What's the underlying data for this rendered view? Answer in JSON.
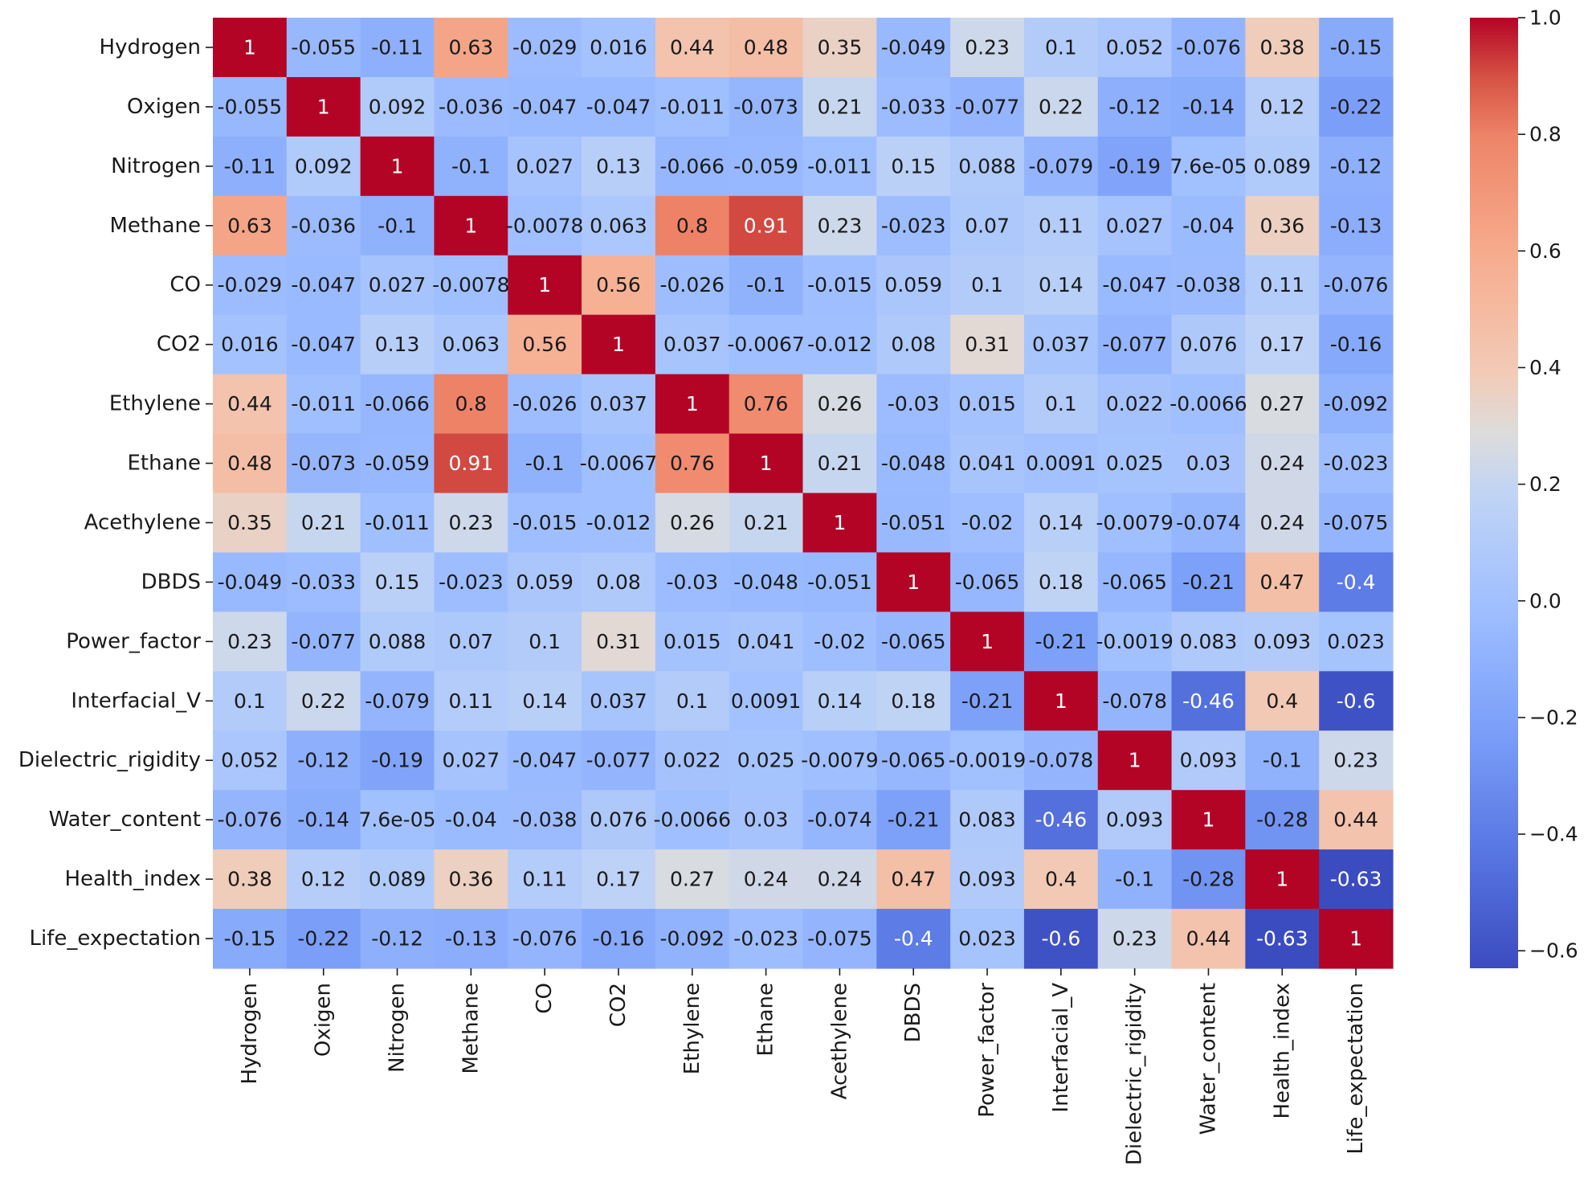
{
  "chart_data": {
    "type": "heatmap",
    "title": "",
    "xlabel": "",
    "ylabel": "",
    "colormap": "coolwarm",
    "vmin": -0.63,
    "vmax": 1.0,
    "labels": [
      "Hydrogen",
      "Oxigen",
      "Nitrogen",
      "Methane",
      "CO",
      "CO2",
      "Ethylene",
      "Ethane",
      "Acethylene",
      "DBDS",
      "Power_factor",
      "Interfacial_V",
      "Dielectric_rigidity",
      "Water_content",
      "Health_index",
      "Life_expectation"
    ],
    "values": [
      [
        1,
        -0.055,
        -0.11,
        0.63,
        -0.029,
        0.016,
        0.44,
        0.48,
        0.35,
        -0.049,
        0.23,
        0.1,
        0.052,
        -0.076,
        0.38,
        -0.15
      ],
      [
        -0.055,
        1,
        0.092,
        -0.036,
        -0.047,
        -0.047,
        -0.011,
        -0.073,
        0.21,
        -0.033,
        -0.077,
        0.22,
        -0.12,
        -0.14,
        0.12,
        -0.22
      ],
      [
        -0.11,
        0.092,
        1,
        -0.1,
        0.027,
        0.13,
        -0.066,
        -0.059,
        -0.011,
        0.15,
        0.088,
        -0.079,
        -0.19,
        7.6e-05,
        0.089,
        -0.12
      ],
      [
        0.63,
        -0.036,
        -0.1,
        1,
        -0.0078,
        0.063,
        0.8,
        0.91,
        0.23,
        -0.023,
        0.07,
        0.11,
        0.027,
        -0.04,
        0.36,
        -0.13
      ],
      [
        -0.029,
        -0.047,
        0.027,
        -0.0078,
        1,
        0.56,
        -0.026,
        -0.1,
        -0.015,
        0.059,
        0.1,
        0.14,
        -0.047,
        -0.038,
        0.11,
        -0.076
      ],
      [
        0.016,
        -0.047,
        0.13,
        0.063,
        0.56,
        1,
        0.037,
        -0.0067,
        -0.012,
        0.08,
        0.31,
        0.037,
        -0.077,
        0.076,
        0.17,
        -0.16
      ],
      [
        0.44,
        -0.011,
        -0.066,
        0.8,
        -0.026,
        0.037,
        1,
        0.76,
        0.26,
        -0.03,
        0.015,
        0.1,
        0.022,
        -0.0066,
        0.27,
        -0.092
      ],
      [
        0.48,
        -0.073,
        -0.059,
        0.91,
        -0.1,
        -0.0067,
        0.76,
        1,
        0.21,
        -0.048,
        0.041,
        0.0091,
        0.025,
        0.03,
        0.24,
        -0.023
      ],
      [
        0.35,
        0.21,
        -0.011,
        0.23,
        -0.015,
        -0.012,
        0.26,
        0.21,
        1,
        -0.051,
        -0.02,
        0.14,
        -0.0079,
        -0.074,
        0.24,
        -0.075
      ],
      [
        -0.049,
        -0.033,
        0.15,
        -0.023,
        0.059,
        0.08,
        -0.03,
        -0.048,
        -0.051,
        1,
        -0.065,
        0.18,
        -0.065,
        -0.21,
        0.47,
        -0.4
      ],
      [
        0.23,
        -0.077,
        0.088,
        0.07,
        0.1,
        0.31,
        0.015,
        0.041,
        -0.02,
        -0.065,
        1,
        -0.21,
        -0.0019,
        0.083,
        0.093,
        0.023
      ],
      [
        0.1,
        0.22,
        -0.079,
        0.11,
        0.14,
        0.037,
        0.1,
        0.0091,
        0.14,
        0.18,
        -0.21,
        1,
        -0.078,
        -0.46,
        0.4,
        -0.6
      ],
      [
        0.052,
        -0.12,
        -0.19,
        0.027,
        -0.047,
        -0.077,
        0.022,
        0.025,
        -0.0079,
        -0.065,
        -0.0019,
        -0.078,
        1,
        0.093,
        -0.1,
        0.23
      ],
      [
        -0.076,
        -0.14,
        7.6e-05,
        -0.04,
        -0.038,
        0.076,
        -0.0066,
        0.03,
        -0.074,
        -0.21,
        0.083,
        -0.46,
        0.093,
        1,
        -0.28,
        0.44
      ],
      [
        0.38,
        0.12,
        0.089,
        0.36,
        0.11,
        0.17,
        0.27,
        0.24,
        0.24,
        0.47,
        0.093,
        0.4,
        -0.1,
        -0.28,
        1,
        -0.63
      ],
      [
        -0.15,
        -0.22,
        -0.12,
        -0.13,
        -0.076,
        -0.16,
        -0.092,
        -0.023,
        -0.075,
        -0.4,
        0.023,
        -0.6,
        0.23,
        0.44,
        -0.63,
        1
      ]
    ],
    "display_labels": [
      [
        "1",
        "-0.055",
        "-0.11",
        "0.63",
        "-0.029",
        "0.016",
        "0.44",
        "0.48",
        "0.35",
        "-0.049",
        "0.23",
        "0.1",
        "0.052",
        "-0.076",
        "0.38",
        "-0.15"
      ],
      [
        "-0.055",
        "1",
        "0.092",
        "-0.036",
        "-0.047",
        "-0.047",
        "-0.011",
        "-0.073",
        "0.21",
        "-0.033",
        "-0.077",
        "0.22",
        "-0.12",
        "-0.14",
        "0.12",
        "-0.22"
      ],
      [
        "-0.11",
        "0.092",
        "1",
        "-0.1",
        "0.027",
        "0.13",
        "-0.066",
        "-0.059",
        "-0.011",
        "0.15",
        "0.088",
        "-0.079",
        "-0.19",
        "7.6e-05",
        "0.089",
        "-0.12"
      ],
      [
        "0.63",
        "-0.036",
        "-0.1",
        "1",
        "-0.0078",
        "0.063",
        "0.8",
        "0.91",
        "0.23",
        "-0.023",
        "0.07",
        "0.11",
        "0.027",
        "-0.04",
        "0.36",
        "-0.13"
      ],
      [
        "-0.029",
        "-0.047",
        "0.027",
        "-0.0078",
        "1",
        "0.56",
        "-0.026",
        "-0.1",
        "-0.015",
        "0.059",
        "0.1",
        "0.14",
        "-0.047",
        "-0.038",
        "0.11",
        "-0.076"
      ],
      [
        "0.016",
        "-0.047",
        "0.13",
        "0.063",
        "0.56",
        "1",
        "0.037",
        "-0.0067",
        "-0.012",
        "0.08",
        "0.31",
        "0.037",
        "-0.077",
        "0.076",
        "0.17",
        "-0.16"
      ],
      [
        "0.44",
        "-0.011",
        "-0.066",
        "0.8",
        "-0.026",
        "0.037",
        "1",
        "0.76",
        "0.26",
        "-0.03",
        "0.015",
        "0.1",
        "0.022",
        "-0.0066",
        "0.27",
        "-0.092"
      ],
      [
        "0.48",
        "-0.073",
        "-0.059",
        "0.91",
        "-0.1",
        "-0.0067",
        "0.76",
        "1",
        "0.21",
        "-0.048",
        "0.041",
        "0.0091",
        "0.025",
        "0.03",
        "0.24",
        "-0.023"
      ],
      [
        "0.35",
        "0.21",
        "-0.011",
        "0.23",
        "-0.015",
        "-0.012",
        "0.26",
        "0.21",
        "1",
        "-0.051",
        "-0.02",
        "0.14",
        "-0.0079",
        "-0.074",
        "0.24",
        "-0.075"
      ],
      [
        "-0.049",
        "-0.033",
        "0.15",
        "-0.023",
        "0.059",
        "0.08",
        "-0.03",
        "-0.048",
        "-0.051",
        "1",
        "-0.065",
        "0.18",
        "-0.065",
        "-0.21",
        "0.47",
        "-0.4"
      ],
      [
        "0.23",
        "-0.077",
        "0.088",
        "0.07",
        "0.1",
        "0.31",
        "0.015",
        "0.041",
        "-0.02",
        "-0.065",
        "1",
        "-0.21",
        "-0.0019",
        "0.083",
        "0.093",
        "0.023"
      ],
      [
        "0.1",
        "0.22",
        "-0.079",
        "0.11",
        "0.14",
        "0.037",
        "0.1",
        "0.0091",
        "0.14",
        "0.18",
        "-0.21",
        "1",
        "-0.078",
        "-0.46",
        "0.4",
        "-0.6"
      ],
      [
        "0.052",
        "-0.12",
        "-0.19",
        "0.027",
        "-0.047",
        "-0.077",
        "0.022",
        "0.025",
        "-0.0079",
        "-0.065",
        "-0.0019",
        "-0.078",
        "1",
        "0.093",
        "-0.1",
        "0.23"
      ],
      [
        "-0.076",
        "-0.14",
        "7.6e-05",
        "-0.04",
        "-0.038",
        "0.076",
        "-0.0066",
        "0.03",
        "-0.074",
        "-0.21",
        "0.083",
        "-0.46",
        "0.093",
        "1",
        "-0.28",
        "0.44"
      ],
      [
        "0.38",
        "0.12",
        "0.089",
        "0.36",
        "0.11",
        "0.17",
        "0.27",
        "0.24",
        "0.24",
        "0.47",
        "0.093",
        "0.4",
        "-0.1",
        "-0.28",
        "1",
        "-0.63"
      ],
      [
        "-0.15",
        "-0.22",
        "-0.12",
        "-0.13",
        "-0.076",
        "-0.16",
        "-0.092",
        "-0.023",
        "-0.075",
        "-0.4",
        "0.023",
        "-0.6",
        "0.23",
        "0.44",
        "-0.63",
        "1"
      ]
    ],
    "colorbar": {
      "ticks": [
        1.0,
        0.8,
        0.6,
        0.4,
        0.2,
        0.0,
        -0.2,
        -0.4,
        -0.6
      ],
      "tick_labels": [
        "1.0",
        "0.8",
        "0.6",
        "0.4",
        "0.2",
        "0.0",
        "−0.2",
        "−0.4",
        "−0.6"
      ]
    }
  }
}
